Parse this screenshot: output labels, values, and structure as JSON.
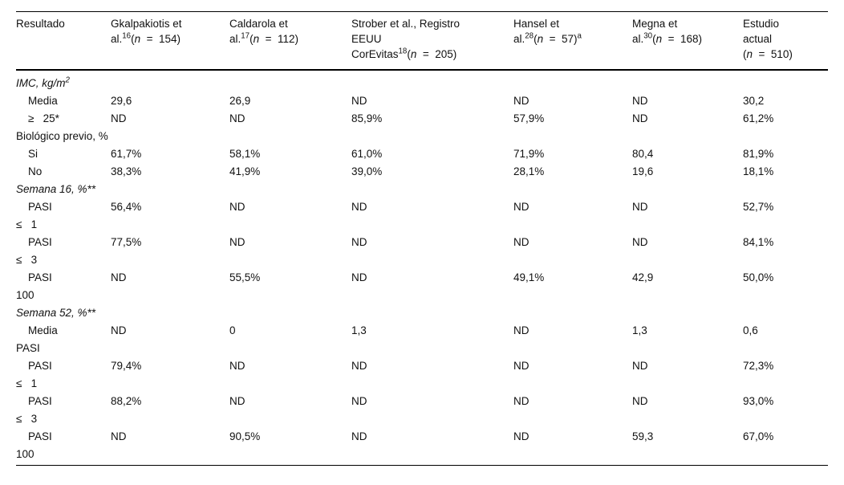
{
  "colors": {
    "background": "#ffffff",
    "text": "#111111",
    "rule": "#000000"
  },
  "table": {
    "headers": [
      {
        "label": "Resultado"
      },
      {
        "name_lines": [
          "Gkalpakiotis et"
        ],
        "last_pre": "al.",
        "ref": "16",
        "n": "154",
        "note": null
      },
      {
        "name_lines": [
          "Caldarola et"
        ],
        "last_pre": "al.",
        "ref": "17",
        "n": "112",
        "note": null
      },
      {
        "name_lines": [
          "Strober et al., Registro",
          "EEUU"
        ],
        "last_pre": "CorEvitas",
        "ref": "18",
        "n": "205",
        "note": null
      },
      {
        "name_lines": [
          "Hansel et"
        ],
        "last_pre": "al.",
        "ref": "28",
        "n": "57",
        "note": "a"
      },
      {
        "name_lines": [
          "Megna et"
        ],
        "last_pre": "al.",
        "ref": "30",
        "n": "168",
        "note": null
      },
      {
        "name_lines": [
          "Estudio",
          "actual"
        ],
        "last_pre": "",
        "ref": null,
        "n": "510",
        "note": null
      }
    ],
    "rows": [
      {
        "type": "section",
        "italic": true,
        "label": "IMC, kg/m",
        "sup": "2",
        "tail": ""
      },
      {
        "type": "data",
        "lines": [
          {
            "t": "Media",
            "ind": true
          }
        ],
        "values": [
          "29,6",
          "26,9",
          "ND",
          "ND",
          "ND",
          "30,2"
        ]
      },
      {
        "type": "data",
        "lines": [
          {
            "t": "≥   25*",
            "ind": true
          }
        ],
        "values": [
          "ND",
          "ND",
          "85,9%",
          "57,9%",
          "ND",
          "61,2%"
        ]
      },
      {
        "type": "section",
        "italic": false,
        "label": "Biológico previo, %",
        "sup": null,
        "tail": ""
      },
      {
        "type": "data",
        "lines": [
          {
            "t": "Si",
            "ind": true
          }
        ],
        "values": [
          "61,7%",
          "58,1%",
          "61,0%",
          "71,9%",
          "80,4",
          "81,9%"
        ]
      },
      {
        "type": "data",
        "lines": [
          {
            "t": "No",
            "ind": true
          }
        ],
        "values": [
          "38,3%",
          "41,9%",
          "39,0%",
          "28,1%",
          "19,6",
          "18,1%"
        ]
      },
      {
        "type": "section",
        "italic": true,
        "label": "Semana 16, %**",
        "sup": null,
        "tail": ""
      },
      {
        "type": "data",
        "lines": [
          {
            "t": "PASI",
            "ind": true
          },
          {
            "t": "≤   1",
            "ind": false
          }
        ],
        "values": [
          "56,4%",
          "ND",
          "ND",
          "ND",
          "ND",
          "52,7%"
        ]
      },
      {
        "type": "data",
        "lines": [
          {
            "t": "PASI",
            "ind": true
          },
          {
            "t": "≤   3",
            "ind": false
          }
        ],
        "values": [
          "77,5%",
          "ND",
          "ND",
          "ND",
          "ND",
          "84,1%"
        ]
      },
      {
        "type": "data",
        "lines": [
          {
            "t": "PASI",
            "ind": true
          },
          {
            "t": "100",
            "ind": false
          }
        ],
        "values": [
          "ND",
          "55,5%",
          "ND",
          "49,1%",
          "42,9",
          "50,0%"
        ]
      },
      {
        "type": "section",
        "italic": true,
        "label": "Semana 52, %**",
        "sup": null,
        "tail": ""
      },
      {
        "type": "data",
        "lines": [
          {
            "t": "Media",
            "ind": true
          },
          {
            "t": "PASI",
            "ind": false
          }
        ],
        "values": [
          "ND",
          "0",
          "1,3",
          "ND",
          "1,3",
          "0,6"
        ]
      },
      {
        "type": "data",
        "lines": [
          {
            "t": "PASI",
            "ind": true
          },
          {
            "t": "≤   1",
            "ind": false
          }
        ],
        "values": [
          "79,4%",
          "ND",
          "ND",
          "ND",
          "ND",
          "72,3%"
        ]
      },
      {
        "type": "data",
        "lines": [
          {
            "t": "PASI",
            "ind": true
          },
          {
            "t": "≤   3",
            "ind": false
          }
        ],
        "values": [
          "88,2%",
          "ND",
          "ND",
          "ND",
          "ND",
          "93,0%"
        ]
      },
      {
        "type": "data",
        "lines": [
          {
            "t": "PASI",
            "ind": true
          },
          {
            "t": "100",
            "ind": false
          }
        ],
        "values": [
          "ND",
          "90,5%",
          "ND",
          "ND",
          "59,3",
          "67,0%"
        ]
      }
    ]
  }
}
